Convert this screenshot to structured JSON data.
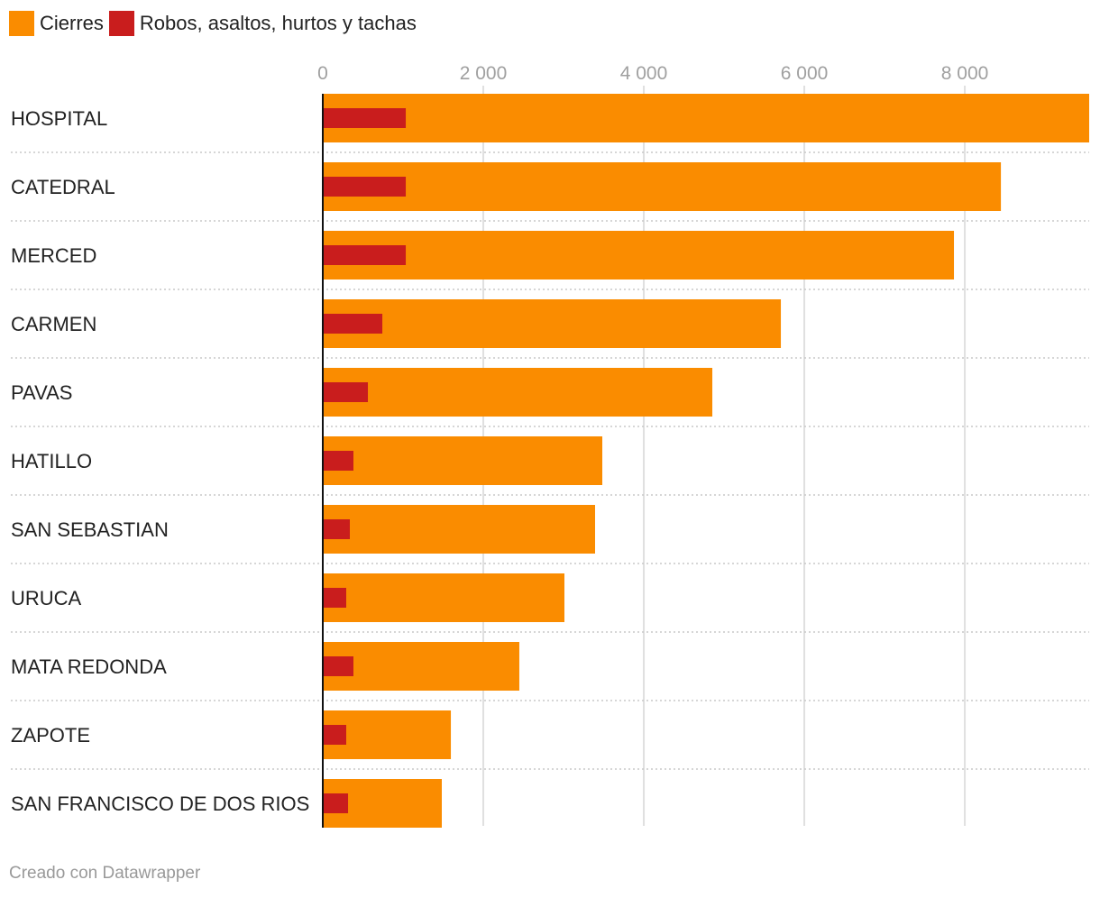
{
  "chart_data": {
    "type": "bar",
    "orientation": "horizontal",
    "categories": [
      "HOSPITAL",
      "CATEDRAL",
      "MERCED",
      "CARMEN",
      "PAVAS",
      "HATILLO",
      "SAN SEBASTIAN",
      "URUCA",
      "MATA REDONDA",
      "ZAPOTE",
      "SAN FRANCISCO DE DOS RIOS"
    ],
    "series": [
      {
        "name": "Cierres",
        "color": "#fa8c00",
        "values": [
          9550,
          8450,
          7865,
          5708,
          4854,
          3483,
          3393,
          3011,
          2449,
          1596,
          1483
        ]
      },
      {
        "name": "Robos, asaltos, hurtos y tachas",
        "color": "#c91d1d",
        "values": [
          1034,
          1034,
          1034,
          742,
          562,
          382,
          337,
          292,
          382,
          292,
          315
        ]
      }
    ],
    "xlim": [
      0,
      9550
    ],
    "ticks": [
      0,
      2000,
      4000,
      6000,
      8000
    ],
    "tick_labels": [
      "0",
      "2 000",
      "4 000",
      "6 000",
      "8 000"
    ],
    "grid": true,
    "legend": "top-left"
  },
  "footer": "Creado con Datawrapper"
}
